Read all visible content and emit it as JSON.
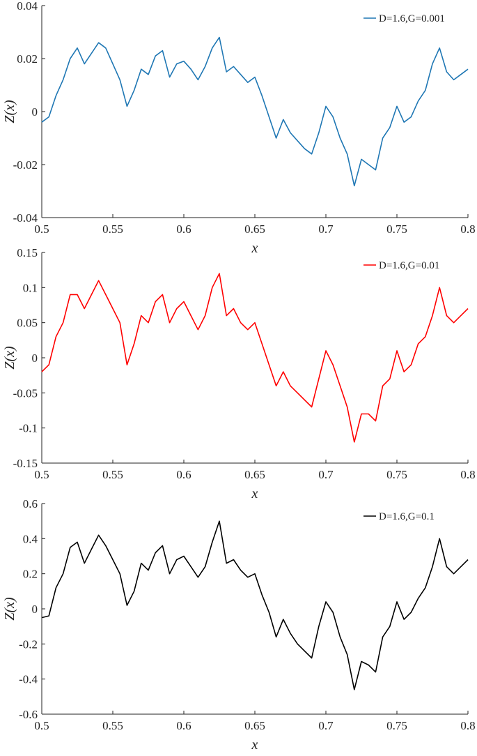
{
  "chart_data": [
    {
      "type": "line",
      "series": [
        {
          "name": "D=1.6,G=0.001",
          "color": "#1f77b4",
          "x": [
            0.5,
            0.505,
            0.51,
            0.515,
            0.52,
            0.525,
            0.53,
            0.535,
            0.54,
            0.545,
            0.55,
            0.555,
            0.56,
            0.565,
            0.57,
            0.575,
            0.58,
            0.585,
            0.59,
            0.595,
            0.6,
            0.605,
            0.61,
            0.615,
            0.62,
            0.625,
            0.63,
            0.635,
            0.64,
            0.645,
            0.65,
            0.655,
            0.66,
            0.665,
            0.67,
            0.675,
            0.68,
            0.685,
            0.69,
            0.695,
            0.7,
            0.705,
            0.71,
            0.715,
            0.72,
            0.725,
            0.73,
            0.735,
            0.74,
            0.745,
            0.75,
            0.755,
            0.76,
            0.765,
            0.77,
            0.775,
            0.78,
            0.785,
            0.79,
            0.795,
            0.8
          ],
          "y": [
            -0.004,
            -0.002,
            0.006,
            0.012,
            0.02,
            0.024,
            0.018,
            0.022,
            0.026,
            0.024,
            0.018,
            0.012,
            0.002,
            0.008,
            0.016,
            0.014,
            0.021,
            0.023,
            0.013,
            0.018,
            0.019,
            0.016,
            0.012,
            0.017,
            0.024,
            0.028,
            0.015,
            0.017,
            0.014,
            0.011,
            0.013,
            0.006,
            -0.002,
            -0.01,
            -0.003,
            -0.008,
            -0.011,
            -0.014,
            -0.016,
            -0.008,
            0.002,
            -0.002,
            -0.01,
            -0.016,
            -0.028,
            -0.018,
            -0.02,
            -0.022,
            -0.01,
            -0.006,
            0.002,
            -0.004,
            -0.002,
            0.004,
            0.008,
            0.018,
            0.024,
            0.015,
            0.012,
            0.014,
            0.016
          ]
        }
      ],
      "xlabel": "x",
      "ylabel": "Z(x)",
      "xlim": [
        0.5,
        0.8
      ],
      "ylim": [
        -0.04,
        0.04
      ],
      "xticks": [
        "0.5",
        "0.55",
        "0.6",
        "0.65",
        "0.7",
        "0.75",
        "0.8"
      ],
      "yticks": [
        "0.04",
        "0.02",
        "0",
        "-0.02",
        "-0.04"
      ],
      "grid": false,
      "legend_position": "top-right"
    },
    {
      "type": "line",
      "series": [
        {
          "name": "D=1.6,G=0.01",
          "color": "#ff0000",
          "x": [
            0.5,
            0.505,
            0.51,
            0.515,
            0.52,
            0.525,
            0.53,
            0.535,
            0.54,
            0.545,
            0.55,
            0.555,
            0.56,
            0.565,
            0.57,
            0.575,
            0.58,
            0.585,
            0.59,
            0.595,
            0.6,
            0.605,
            0.61,
            0.615,
            0.62,
            0.625,
            0.63,
            0.635,
            0.64,
            0.645,
            0.65,
            0.655,
            0.66,
            0.665,
            0.67,
            0.675,
            0.68,
            0.685,
            0.69,
            0.695,
            0.7,
            0.705,
            0.71,
            0.715,
            0.72,
            0.725,
            0.73,
            0.735,
            0.74,
            0.745,
            0.75,
            0.755,
            0.76,
            0.765,
            0.77,
            0.775,
            0.78,
            0.785,
            0.79,
            0.795,
            0.8
          ],
          "y": [
            -0.02,
            -0.01,
            0.03,
            0.05,
            0.09,
            0.09,
            0.07,
            0.09,
            0.11,
            0.09,
            0.07,
            0.05,
            -0.01,
            0.02,
            0.06,
            0.05,
            0.08,
            0.09,
            0.05,
            0.07,
            0.08,
            0.06,
            0.04,
            0.06,
            0.1,
            0.12,
            0.06,
            0.07,
            0.05,
            0.04,
            0.05,
            0.02,
            -0.01,
            -0.04,
            -0.02,
            -0.04,
            -0.05,
            -0.06,
            -0.07,
            -0.03,
            0.01,
            -0.01,
            -0.04,
            -0.07,
            -0.12,
            -0.08,
            -0.08,
            -0.09,
            -0.04,
            -0.03,
            0.01,
            -0.02,
            -0.01,
            0.02,
            0.03,
            0.06,
            0.1,
            0.06,
            0.05,
            0.06,
            0.07
          ]
        }
      ],
      "xlabel": "x",
      "ylabel": "Z(x)",
      "xlim": [
        0.5,
        0.8
      ],
      "ylim": [
        -0.15,
        0.15
      ],
      "xticks": [
        "0.5",
        "0.55",
        "0.6",
        "0.65",
        "0.7",
        "0.75",
        "0.8"
      ],
      "yticks": [
        "0.15",
        "0.1",
        "0.05",
        "0",
        "-0.05",
        "-0.1",
        "-0.15"
      ],
      "grid": false,
      "legend_position": "top-right"
    },
    {
      "type": "line",
      "series": [
        {
          "name": "D=1.6,G=0.1",
          "color": "#000000",
          "x": [
            0.5,
            0.505,
            0.51,
            0.515,
            0.52,
            0.525,
            0.53,
            0.535,
            0.54,
            0.545,
            0.55,
            0.555,
            0.56,
            0.565,
            0.57,
            0.575,
            0.58,
            0.585,
            0.59,
            0.595,
            0.6,
            0.605,
            0.61,
            0.615,
            0.62,
            0.625,
            0.63,
            0.635,
            0.64,
            0.645,
            0.65,
            0.655,
            0.66,
            0.665,
            0.67,
            0.675,
            0.68,
            0.685,
            0.69,
            0.695,
            0.7,
            0.705,
            0.71,
            0.715,
            0.72,
            0.725,
            0.73,
            0.735,
            0.74,
            0.745,
            0.75,
            0.755,
            0.76,
            0.765,
            0.77,
            0.775,
            0.78,
            0.785,
            0.79,
            0.795,
            0.8
          ],
          "y": [
            -0.05,
            -0.04,
            0.12,
            0.2,
            0.35,
            0.38,
            0.26,
            0.34,
            0.42,
            0.36,
            0.28,
            0.2,
            0.02,
            0.1,
            0.26,
            0.22,
            0.32,
            0.36,
            0.2,
            0.28,
            0.3,
            0.24,
            0.18,
            0.24,
            0.38,
            0.5,
            0.26,
            0.28,
            0.22,
            0.18,
            0.2,
            0.08,
            -0.02,
            -0.16,
            -0.06,
            -0.14,
            -0.2,
            -0.24,
            -0.28,
            -0.1,
            0.04,
            -0.02,
            -0.16,
            -0.26,
            -0.46,
            -0.3,
            -0.32,
            -0.36,
            -0.16,
            -0.1,
            0.04,
            -0.06,
            -0.02,
            0.06,
            0.12,
            0.24,
            0.4,
            0.24,
            0.2,
            0.24,
            0.28
          ]
        }
      ],
      "xlabel": "x",
      "ylabel": "Z(x)",
      "xlim": [
        0.5,
        0.8
      ],
      "ylim": [
        -0.6,
        0.6
      ],
      "xticks": [
        "0.5",
        "0.55",
        "0.6",
        "0.65",
        "0.7",
        "0.75",
        "0.8"
      ],
      "yticks": [
        "0.6",
        "0.4",
        "0.2",
        "0",
        "-0.2",
        "-0.4",
        "-0.6"
      ],
      "grid": false,
      "legend_position": "top-right"
    }
  ]
}
